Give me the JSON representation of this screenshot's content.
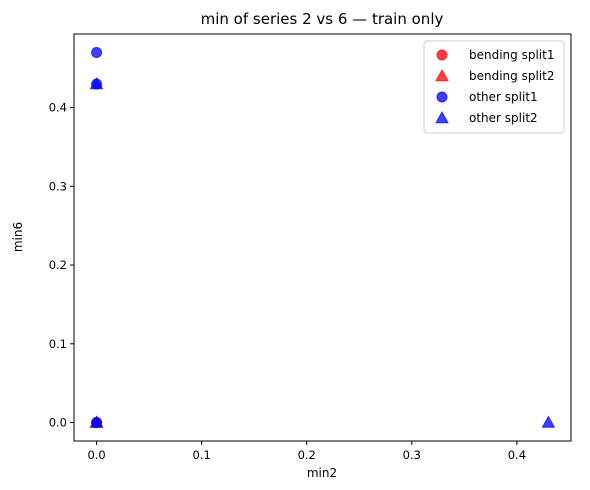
{
  "chart_data": {
    "type": "scatter",
    "title": "min of series 2 vs 6 — train only",
    "xlabel": "min2",
    "ylabel": "min6",
    "xlim": [
      -0.0215,
      0.4515
    ],
    "ylim": [
      -0.0235,
      0.4935
    ],
    "x_ticks": [
      0.0,
      0.1,
      0.2,
      0.3,
      0.4
    ],
    "y_ticks": [
      0.0,
      0.1,
      0.2,
      0.3,
      0.4
    ],
    "x_tick_labels": [
      "0.0",
      "0.1",
      "0.2",
      "0.3",
      "0.4"
    ],
    "y_tick_labels": [
      "0.0",
      "0.1",
      "0.2",
      "0.3",
      "0.4"
    ],
    "grid": false,
    "legend_position": "top-right",
    "series": [
      {
        "name": "bending split1",
        "marker": "circle",
        "color": "#ff0000",
        "points": [
          [
            0.0,
            0.0
          ]
        ]
      },
      {
        "name": "bending split2",
        "marker": "triangle",
        "color": "#ff0000",
        "points": [
          [
            0.0,
            0.0
          ]
        ]
      },
      {
        "name": "other split1",
        "marker": "circle",
        "color": "#0000ff",
        "points": [
          [
            0.0,
            0.47
          ],
          [
            0.0,
            0.43
          ],
          [
            0.0,
            0.0
          ]
        ]
      },
      {
        "name": "other split2",
        "marker": "triangle",
        "color": "#0000ff",
        "points": [
          [
            0.0,
            0.43
          ],
          [
            0.0,
            0.0
          ],
          [
            0.43,
            0.0
          ]
        ]
      }
    ]
  }
}
